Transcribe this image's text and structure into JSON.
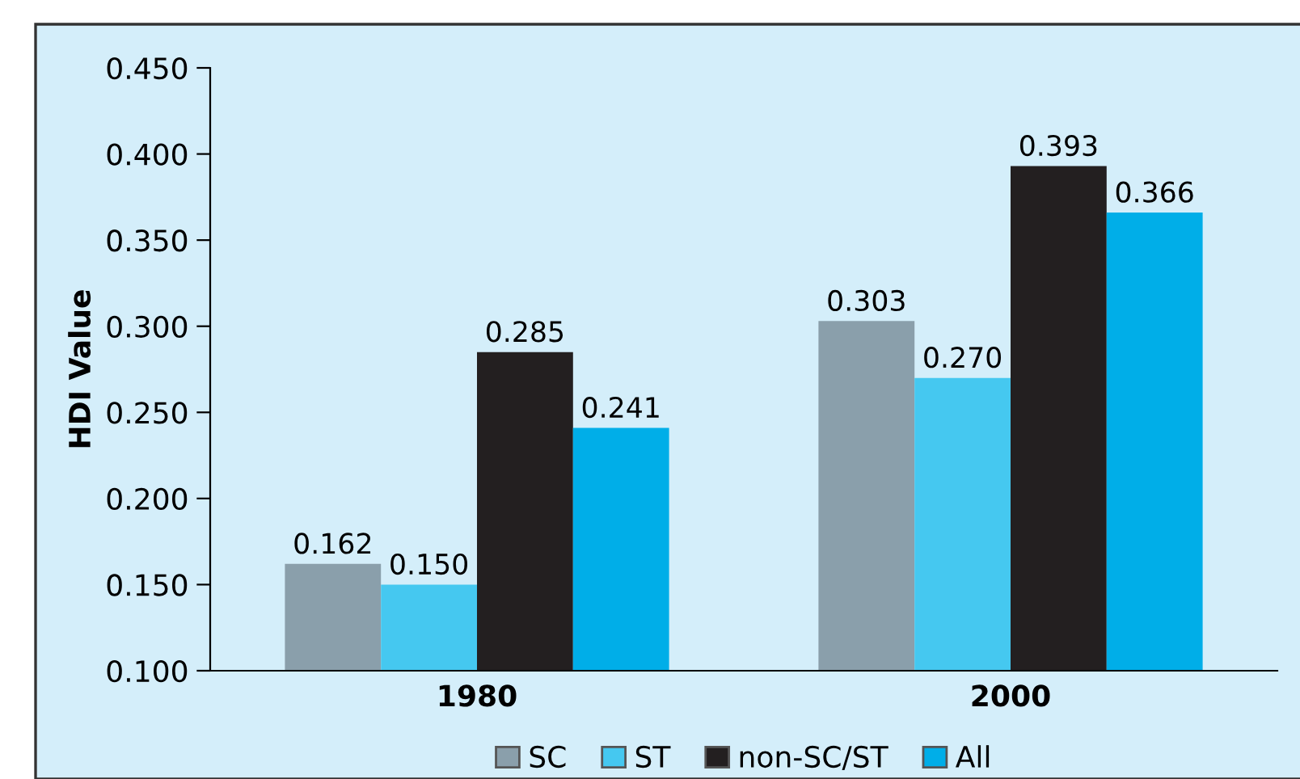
{
  "chart_data": {
    "type": "bar",
    "ylabel": "HDI Value",
    "categories": [
      "1980",
      "2000"
    ],
    "series": [
      {
        "name": "SC",
        "color": "#8a9fab",
        "values": [
          0.162,
          0.303
        ],
        "value_labels": [
          "0.162",
          "0.303"
        ]
      },
      {
        "name": "ST",
        "color": "#45c8f0",
        "values": [
          0.15,
          0.27
        ],
        "value_labels": [
          "0.150",
          "0.270"
        ]
      },
      {
        "name": "non-SC/ST",
        "color": "#231f20",
        "values": [
          0.285,
          0.393
        ],
        "value_labels": [
          "0.285",
          "0.393"
        ]
      },
      {
        "name": "All",
        "color": "#00aee8",
        "values": [
          0.241,
          0.366
        ],
        "value_labels": [
          "0.241",
          "0.366"
        ]
      }
    ],
    "ylim": [
      0.1,
      0.45
    ],
    "yticks": [
      {
        "value": 0.1,
        "label": "0.100"
      },
      {
        "value": 0.15,
        "label": "0.150"
      },
      {
        "value": 0.2,
        "label": "0.200"
      },
      {
        "value": 0.25,
        "label": "0.250"
      },
      {
        "value": 0.3,
        "label": "0.300"
      },
      {
        "value": 0.35,
        "label": "0.350"
      },
      {
        "value": 0.4,
        "label": "0.400"
      },
      {
        "value": 0.45,
        "label": "0.450"
      }
    ],
    "grid": false,
    "legend": "bottom"
  }
}
